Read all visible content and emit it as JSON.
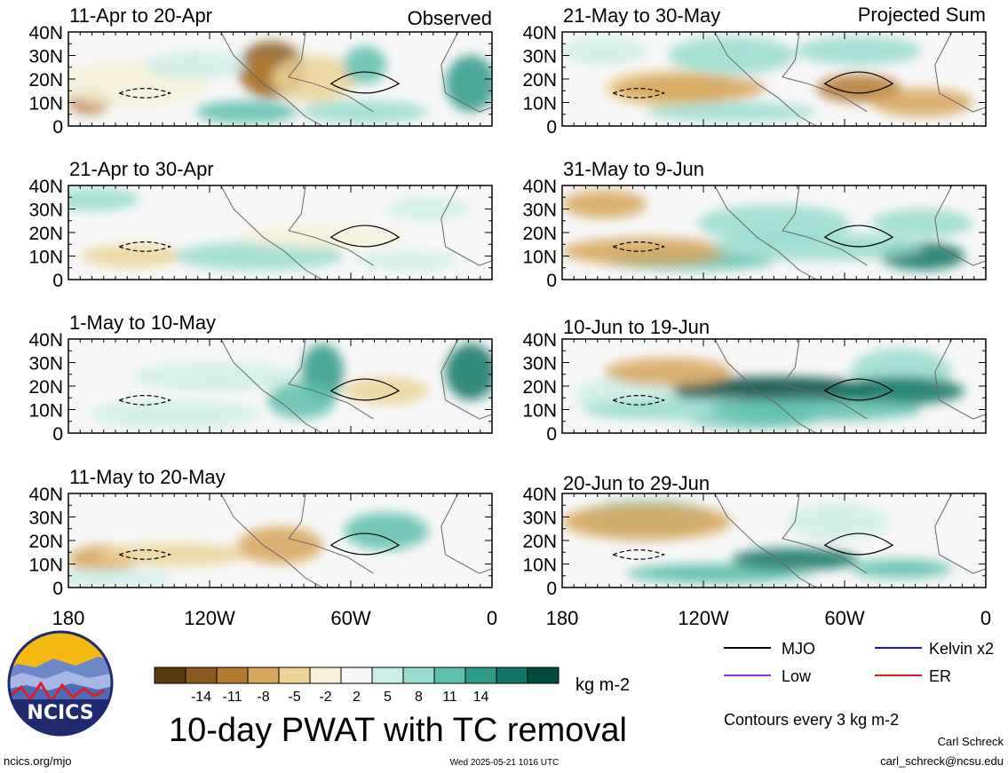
{
  "observed_label": "Observed",
  "projected_label": "Projected Sum",
  "panels_left": [
    {
      "title": "11-Apr to 20-Apr"
    },
    {
      "title": "21-Apr to 30-Apr"
    },
    {
      "title": "1-May to 10-May"
    },
    {
      "title": "11-May to 20-May"
    }
  ],
  "panels_right": [
    {
      "title": "21-May to 30-May"
    },
    {
      "title": "31-May to 9-Jun"
    },
    {
      "title": "10-Jun to 19-Jun"
    },
    {
      "title": "20-Jun to 29-Jun"
    }
  ],
  "lat_ticks": [
    "40N",
    "30N",
    "20N",
    "10N",
    "0"
  ],
  "lon_ticks": [
    "180",
    "120W",
    "60W",
    "0"
  ],
  "legend": {
    "mjo": {
      "label": "MJO",
      "color": "#000000"
    },
    "kelvin": {
      "label": "Kelvin x2",
      "color": "#1a1adf"
    },
    "low": {
      "label": "Low",
      "color": "#9b30d9"
    },
    "er": {
      "label": "ER",
      "color": "#e01818"
    }
  },
  "colorbar": {
    "labels": [
      "-14",
      "-11",
      "-8",
      "-5",
      "-2",
      "2",
      "5",
      "8",
      "11",
      "14"
    ],
    "colors": [
      "#5c3a10",
      "#8c5a1c",
      "#b47a30",
      "#d6a65a",
      "#ecd398",
      "#f6f0d6",
      "#f7f7f7",
      "#cdeee6",
      "#98dccf",
      "#5dbfae",
      "#2e9a89",
      "#0f7566",
      "#034a3e"
    ],
    "units": "kg m-2"
  },
  "main_title": "10-day PWAT with TC removal",
  "contours_note": "Contours every 3 kg m-2",
  "author": "Carl Schreck",
  "email": "carl_schreck@ncsu.edu",
  "url": "ncics.org/mjo",
  "timestamp": "Wed 2025-05-21 1016 UTC",
  "logo_text": "NCICS"
}
